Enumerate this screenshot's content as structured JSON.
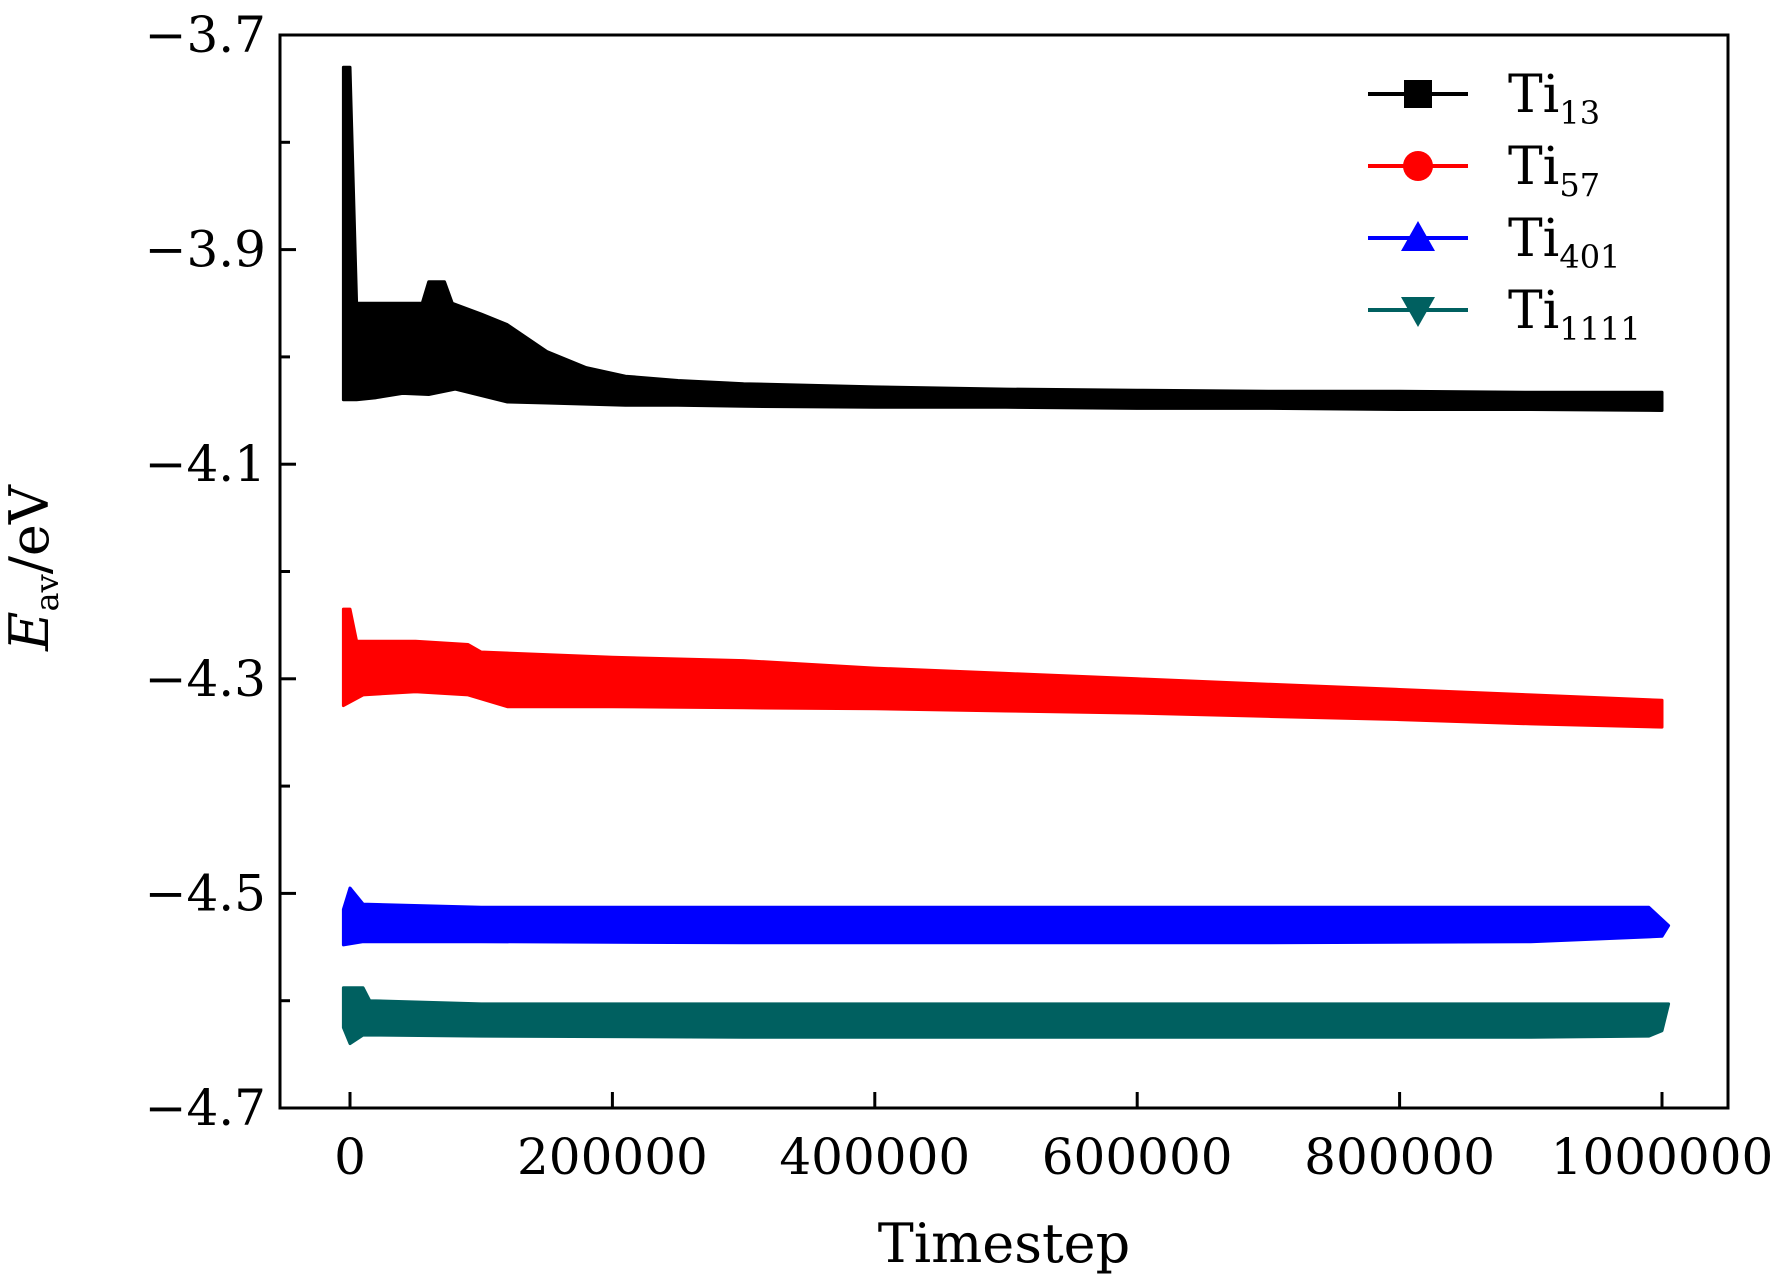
{
  "chart_data": {
    "type": "line",
    "title": "",
    "xlabel": "Timestep",
    "ylabel": {
      "main": "E",
      "sub": "av",
      "unit": "/eV"
    },
    "xlim": [
      -55000,
      1040000
    ],
    "ylim": [
      -4.7,
      -3.7
    ],
    "x_ticks": [
      0,
      200000,
      400000,
      600000,
      800000,
      1000000
    ],
    "x_tick_labels": [
      "0",
      "200000",
      "400000",
      "600000",
      "800000",
      "1000000"
    ],
    "y_ticks": [
      -3.7,
      -3.9,
      -4.1,
      -4.3,
      -4.5,
      -4.7
    ],
    "y_tick_labels": [
      "−3.7",
      "−3.9",
      "−4.1",
      "−4.3",
      "−4.5",
      "−4.7"
    ],
    "y_minor_ticks": [
      -3.8,
      -4.0,
      -4.2,
      -4.4,
      -4.6
    ],
    "grid": false,
    "legend_position": "top-right",
    "series": [
      {
        "name": "Ti",
        "sub": "13",
        "color": "#000000",
        "marker": "square",
        "upper": [
          [
            -5000,
            -3.73
          ],
          [
            0,
            -3.73
          ],
          [
            5000,
            -3.95
          ],
          [
            40000,
            -3.95
          ],
          [
            55000,
            -3.95
          ],
          [
            60000,
            -3.93
          ],
          [
            72000,
            -3.93
          ],
          [
            78000,
            -3.95
          ],
          [
            100000,
            -3.96
          ],
          [
            120000,
            -3.97
          ],
          [
            150000,
            -3.995
          ],
          [
            180000,
            -4.01
          ],
          [
            210000,
            -4.018
          ],
          [
            250000,
            -4.022
          ],
          [
            300000,
            -4.025
          ],
          [
            400000,
            -4.028
          ],
          [
            500000,
            -4.03
          ],
          [
            600000,
            -4.031
          ],
          [
            700000,
            -4.032
          ],
          [
            800000,
            -4.032
          ],
          [
            900000,
            -4.033
          ],
          [
            1000000,
            -4.033
          ]
        ],
        "lower": [
          [
            1000000,
            -4.05
          ],
          [
            900000,
            -4.049
          ],
          [
            800000,
            -4.049
          ],
          [
            700000,
            -4.048
          ],
          [
            600000,
            -4.048
          ],
          [
            500000,
            -4.047
          ],
          [
            400000,
            -4.047
          ],
          [
            300000,
            -4.046
          ],
          [
            250000,
            -4.045
          ],
          [
            210000,
            -4.045
          ],
          [
            150000,
            -4.043
          ],
          [
            120000,
            -4.042
          ],
          [
            80000,
            -4.03
          ],
          [
            60000,
            -4.035
          ],
          [
            40000,
            -4.034
          ],
          [
            20000,
            -4.038
          ],
          [
            5000,
            -4.04
          ],
          [
            -5000,
            -4.04
          ]
        ]
      },
      {
        "name": "Ti",
        "sub": "57",
        "color": "#ff0000",
        "marker": "circle",
        "upper": [
          [
            -5000,
            -4.235
          ],
          [
            0,
            -4.235
          ],
          [
            5000,
            -4.265
          ],
          [
            50000,
            -4.265
          ],
          [
            90000,
            -4.268
          ],
          [
            100000,
            -4.275
          ],
          [
            200000,
            -4.28
          ],
          [
            300000,
            -4.283
          ],
          [
            400000,
            -4.29
          ],
          [
            500000,
            -4.295
          ],
          [
            600000,
            -4.3
          ],
          [
            700000,
            -4.305
          ],
          [
            800000,
            -4.31
          ],
          [
            900000,
            -4.315
          ],
          [
            1000000,
            -4.32
          ]
        ],
        "lower": [
          [
            1000000,
            -4.345
          ],
          [
            900000,
            -4.342
          ],
          [
            800000,
            -4.338
          ],
          [
            700000,
            -4.335
          ],
          [
            600000,
            -4.332
          ],
          [
            500000,
            -4.33
          ],
          [
            400000,
            -4.328
          ],
          [
            300000,
            -4.327
          ],
          [
            200000,
            -4.326
          ],
          [
            120000,
            -4.326
          ],
          [
            90000,
            -4.315
          ],
          [
            50000,
            -4.312
          ],
          [
            10000,
            -4.315
          ],
          [
            -5000,
            -4.325
          ]
        ]
      },
      {
        "name": "Ti",
        "sub": "401",
        "color": "#0000ff",
        "marker": "triangle-up",
        "upper": [
          [
            -5000,
            -4.515
          ],
          [
            0,
            -4.495
          ],
          [
            10000,
            -4.51
          ],
          [
            100000,
            -4.513
          ],
          [
            300000,
            -4.513
          ],
          [
            500000,
            -4.513
          ],
          [
            700000,
            -4.513
          ],
          [
            900000,
            -4.513
          ],
          [
            990000,
            -4.513
          ],
          [
            1005000,
            -4.53
          ]
        ],
        "lower": [
          [
            1000000,
            -4.54
          ],
          [
            900000,
            -4.545
          ],
          [
            700000,
            -4.546
          ],
          [
            500000,
            -4.546
          ],
          [
            300000,
            -4.546
          ],
          [
            100000,
            -4.545
          ],
          [
            10000,
            -4.545
          ],
          [
            -5000,
            -4.548
          ]
        ]
      },
      {
        "name": "Ti",
        "sub": "1111",
        "color": "#006060",
        "marker": "triangle-down",
        "upper": [
          [
            -5000,
            -4.588
          ],
          [
            10000,
            -4.588
          ],
          [
            15000,
            -4.6
          ],
          [
            100000,
            -4.603
          ],
          [
            300000,
            -4.603
          ],
          [
            500000,
            -4.603
          ],
          [
            700000,
            -4.603
          ],
          [
            900000,
            -4.603
          ],
          [
            1005000,
            -4.603
          ]
        ],
        "lower": [
          [
            1000000,
            -4.628
          ],
          [
            990000,
            -4.633
          ],
          [
            900000,
            -4.634
          ],
          [
            700000,
            -4.634
          ],
          [
            500000,
            -4.634
          ],
          [
            300000,
            -4.634
          ],
          [
            100000,
            -4.633
          ],
          [
            10000,
            -4.632
          ],
          [
            0,
            -4.64
          ],
          [
            -5000,
            -4.625
          ]
        ]
      }
    ]
  }
}
